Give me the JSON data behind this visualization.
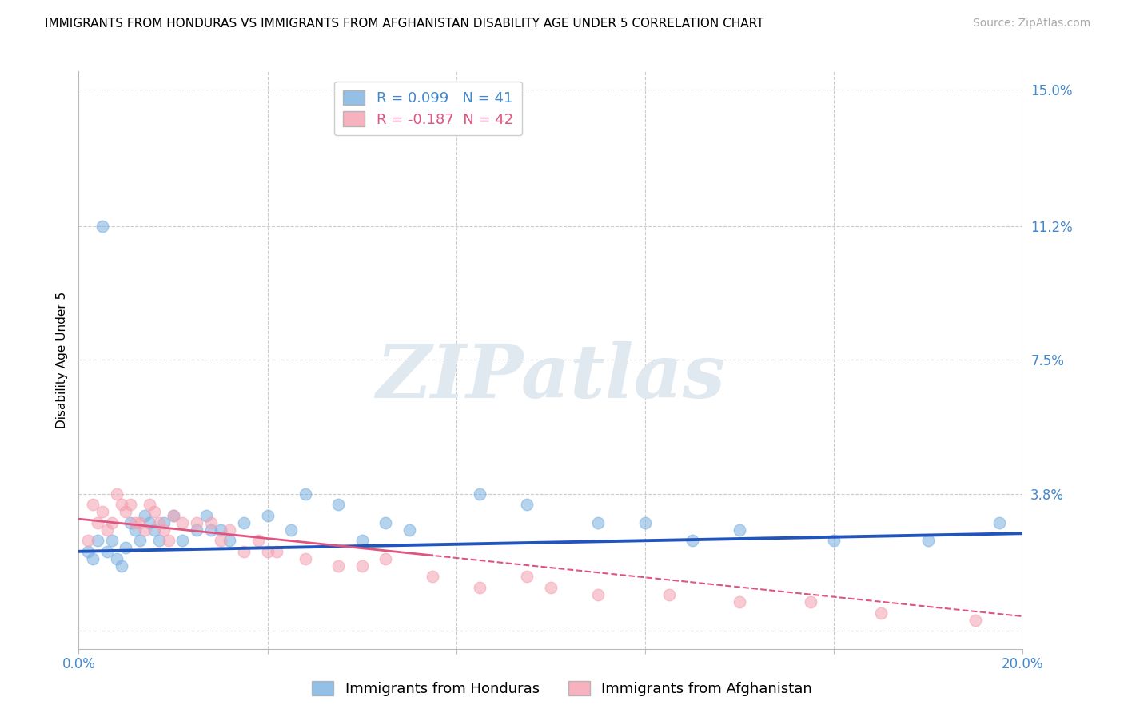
{
  "title": "IMMIGRANTS FROM HONDURAS VS IMMIGRANTS FROM AFGHANISTAN DISABILITY AGE UNDER 5 CORRELATION CHART",
  "source": "Source: ZipAtlas.com",
  "ylabel": "Disability Age Under 5",
  "xlim": [
    0.0,
    0.2
  ],
  "ylim": [
    -0.005,
    0.155
  ],
  "xticks": [
    0.0,
    0.04,
    0.08,
    0.12,
    0.16,
    0.2
  ],
  "xtick_labels": [
    "0.0%",
    "",
    "",
    "",
    "",
    "20.0%"
  ],
  "yticks": [
    0.0,
    0.038,
    0.075,
    0.112,
    0.15
  ],
  "ytick_labels": [
    "",
    "3.8%",
    "7.5%",
    "11.2%",
    "15.0%"
  ],
  "honduras_color": "#7ab0e0",
  "afghanistan_color": "#f4a0b0",
  "trend_honduras_color": "#2255bb",
  "trend_afghanistan_color": "#e05580",
  "R_honduras": 0.099,
  "N_honduras": 41,
  "R_afghanistan": -0.187,
  "N_afghanistan": 42,
  "honduras_x": [
    0.002,
    0.003,
    0.004,
    0.005,
    0.006,
    0.007,
    0.008,
    0.009,
    0.01,
    0.011,
    0.012,
    0.013,
    0.014,
    0.015,
    0.016,
    0.017,
    0.018,
    0.02,
    0.022,
    0.025,
    0.027,
    0.028,
    0.03,
    0.032,
    0.035,
    0.04,
    0.045,
    0.048,
    0.055,
    0.06,
    0.065,
    0.07,
    0.085,
    0.095,
    0.11,
    0.12,
    0.13,
    0.14,
    0.16,
    0.18,
    0.195
  ],
  "honduras_y": [
    0.022,
    0.02,
    0.025,
    0.112,
    0.022,
    0.025,
    0.02,
    0.018,
    0.023,
    0.03,
    0.028,
    0.025,
    0.032,
    0.03,
    0.028,
    0.025,
    0.03,
    0.032,
    0.025,
    0.028,
    0.032,
    0.028,
    0.028,
    0.025,
    0.03,
    0.032,
    0.028,
    0.038,
    0.035,
    0.025,
    0.03,
    0.028,
    0.038,
    0.035,
    0.03,
    0.03,
    0.025,
    0.028,
    0.025,
    0.025,
    0.03
  ],
  "afghanistan_x": [
    0.002,
    0.003,
    0.004,
    0.005,
    0.006,
    0.007,
    0.008,
    0.009,
    0.01,
    0.011,
    0.012,
    0.013,
    0.014,
    0.015,
    0.016,
    0.017,
    0.018,
    0.019,
    0.02,
    0.022,
    0.025,
    0.028,
    0.03,
    0.032,
    0.035,
    0.038,
    0.04,
    0.042,
    0.048,
    0.055,
    0.06,
    0.065,
    0.075,
    0.085,
    0.095,
    0.1,
    0.11,
    0.125,
    0.14,
    0.155,
    0.17,
    0.19
  ],
  "afghanistan_y": [
    0.025,
    0.035,
    0.03,
    0.033,
    0.028,
    0.03,
    0.038,
    0.035,
    0.033,
    0.035,
    0.03,
    0.03,
    0.028,
    0.035,
    0.033,
    0.03,
    0.028,
    0.025,
    0.032,
    0.03,
    0.03,
    0.03,
    0.025,
    0.028,
    0.022,
    0.025,
    0.022,
    0.022,
    0.02,
    0.018,
    0.018,
    0.02,
    0.015,
    0.012,
    0.015,
    0.012,
    0.01,
    0.01,
    0.008,
    0.008,
    0.005,
    0.003
  ],
  "background_color": "#ffffff",
  "grid_color": "#cccccc",
  "watermark_text": "ZIPatlas",
  "watermark_color": "#e0e8f0",
  "title_fontsize": 11,
  "axis_label_fontsize": 11,
  "tick_fontsize": 12,
  "tick_color": "#4488cc",
  "legend_fontsize": 13,
  "source_fontsize": 10,
  "source_color": "#aaaaaa",
  "legend_R_color_honduras": "#4488cc",
  "legend_R_color_afghanistan": "#e05580"
}
